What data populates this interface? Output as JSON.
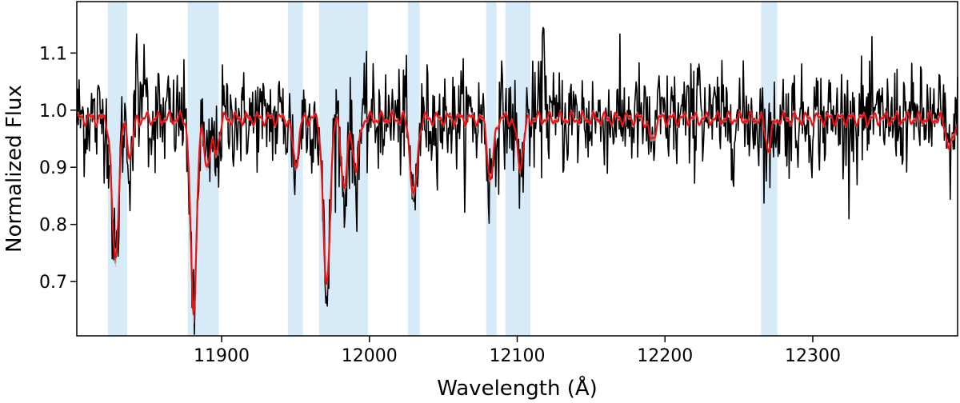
{
  "chart_data": {
    "type": "line",
    "title": "",
    "xlabel": "Wavelength (Å)",
    "ylabel": "Normalized Flux",
    "xlim": [
      11802,
      12398
    ],
    "ylim": [
      0.605,
      1.19
    ],
    "x_ticks": [
      11900,
      12000,
      12100,
      12200,
      12300
    ],
    "y_ticks": [
      0.7,
      0.8,
      0.9,
      1.0,
      1.1
    ],
    "x_tick_labels": [
      "11900",
      "12000",
      "12100",
      "12200",
      "12300"
    ],
    "y_tick_labels": [
      "0.7",
      "0.8",
      "0.9",
      "1.0",
      "1.1"
    ],
    "grid": false,
    "highlight_bands": [
      [
        11823,
        11836
      ],
      [
        11877,
        11898
      ],
      [
        11945,
        11955
      ],
      [
        11966,
        11999
      ],
      [
        12026,
        12034
      ],
      [
        12079,
        12086
      ],
      [
        12092,
        12109
      ],
      [
        12265,
        12276
      ]
    ],
    "absorption_lines": [
      {
        "center": 11828,
        "depth": 0.25,
        "width": 2.2
      },
      {
        "center": 11838,
        "depth": 0.06,
        "width": 2.0
      },
      {
        "center": 11881,
        "depth": 0.34,
        "width": 2.0
      },
      {
        "center": 11890,
        "depth": 0.08,
        "width": 2.0
      },
      {
        "center": 11896,
        "depth": 0.06,
        "width": 2.0
      },
      {
        "center": 11950,
        "depth": 0.08,
        "width": 2.0
      },
      {
        "center": 11971,
        "depth": 0.3,
        "width": 2.2
      },
      {
        "center": 11983,
        "depth": 0.12,
        "width": 2.0
      },
      {
        "center": 11991,
        "depth": 0.09,
        "width": 2.0
      },
      {
        "center": 12030,
        "depth": 0.14,
        "width": 2.2
      },
      {
        "center": 12082,
        "depth": 0.11,
        "width": 2.0
      },
      {
        "center": 12102,
        "depth": 0.08,
        "width": 2.2
      },
      {
        "center": 12191,
        "depth": 0.04,
        "width": 2.0
      },
      {
        "center": 12270,
        "depth": 0.05,
        "width": 2.0
      },
      {
        "center": 12393,
        "depth": 0.05,
        "width": 2.5
      }
    ],
    "series": [
      {
        "role": "observed",
        "color": "#000000",
        "continuum": 0.985,
        "noise_amplitude": 0.045,
        "spikes": [
          [
            11843,
            0.1
          ],
          [
            11848,
            0.13
          ],
          [
            12118,
            0.2
          ],
          [
            12223,
            0.14
          ]
        ]
      },
      {
        "role": "model",
        "color": "#ee1111",
        "band_color": "#f5a0a0",
        "continuum": 0.985,
        "ripple_amplitude": 0.008
      }
    ],
    "colors": {
      "highlight": "#d6ebf7",
      "observed": "#000000",
      "model": "#ee1111",
      "model_band": "#f5a0a0",
      "axes": "#000000"
    }
  }
}
